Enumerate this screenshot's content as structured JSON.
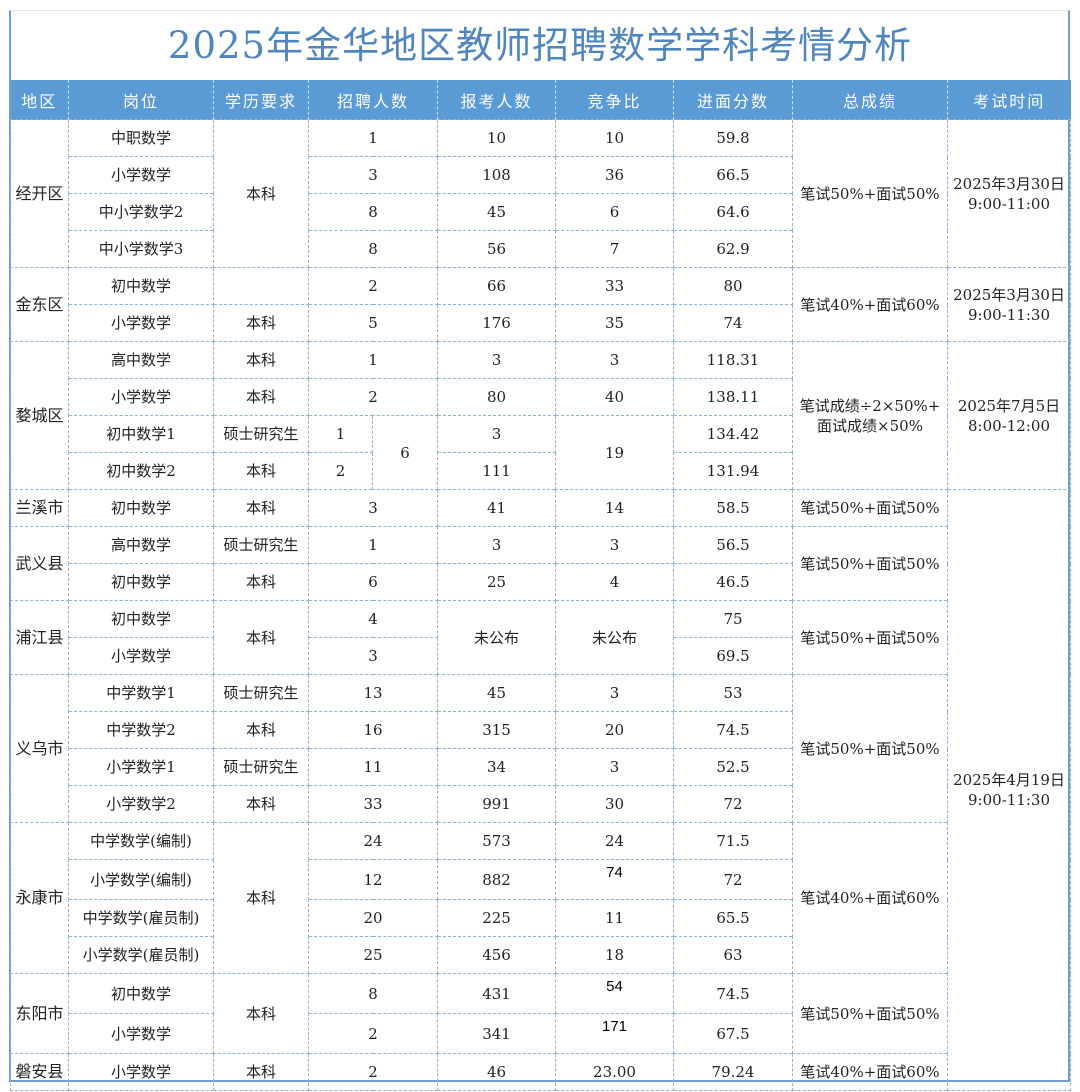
{
  "title": "2025年金华地区教师招聘数学学科考情分析",
  "headers": [
    "地区",
    "岗位",
    "学历要求",
    "招聘人数",
    "报考人数",
    "竞争比",
    "进面分数",
    "总成绩",
    "考试时间"
  ],
  "regions": [
    {
      "name": "经开区",
      "score_rule": "笔试50%+面试50%",
      "exam_time": "2025年3月30日\n9:00-11:00",
      "rows": [
        {
          "position": "中职数学",
          "education": "本科",
          "recruits": "1",
          "applicants": "10",
          "ratio": "10",
          "cutoff": "59.8"
        },
        {
          "position": "小学数学",
          "recruits": "3",
          "applicants": "108",
          "ratio": "36",
          "cutoff": "66.5"
        },
        {
          "position": "中小学数学2",
          "recruits": "8",
          "applicants": "45",
          "ratio": "6",
          "cutoff": "64.6"
        },
        {
          "position": "中小学数学3",
          "recruits": "8",
          "applicants": "56",
          "ratio": "7",
          "cutoff": "62.9"
        }
      ]
    },
    {
      "name": "金东区",
      "score_rule": "笔试40%+面试60%",
      "exam_time": "2025年3月30日\n9:00-11:30",
      "rows": [
        {
          "position": "初中数学",
          "education": "",
          "recruits": "2",
          "applicants": "66",
          "ratio": "33",
          "cutoff": "80"
        },
        {
          "position": "小学数学",
          "education": "本科",
          "recruits": "5",
          "applicants": "176",
          "ratio": "35",
          "cutoff": "74"
        }
      ]
    },
    {
      "name": "婺城区",
      "score_rule": "笔试成绩÷2×50%+\n面试成绩×50%",
      "exam_time": "2025年7月5日\n8:00-12:00",
      "rows": [
        {
          "position": "高中数学",
          "education": "本科",
          "recruits": "1",
          "applicants": "3",
          "ratio": "3",
          "cutoff": "118.31"
        },
        {
          "position": "小学数学",
          "education": "本科",
          "recruits": "2",
          "applicants": "80",
          "ratio": "40",
          "cutoff": "138.11"
        },
        {
          "position": "初中数学1",
          "education": "硕士研究生",
          "recruits": "1",
          "recruits_total": "6",
          "applicants": "3",
          "ratio": "19",
          "cutoff": "134.42"
        },
        {
          "position": "初中数学2",
          "education": "本科",
          "recruits": "2",
          "applicants": "111",
          "cutoff": "131.94"
        }
      ]
    },
    {
      "name": "兰溪市",
      "score_rule": "笔试50%+面试50%",
      "exam_time": "2025年4月19日\n9:00-11:30",
      "rows": [
        {
          "position": "初中数学",
          "education": "本科",
          "recruits": "3",
          "applicants": "41",
          "ratio": "14",
          "cutoff": "58.5"
        }
      ]
    },
    {
      "name": "武义县",
      "score_rule": "笔试50%+面试50%",
      "rows": [
        {
          "position": "高中数学",
          "education": "硕士研究生",
          "recruits": "1",
          "applicants": "3",
          "ratio": "3",
          "cutoff": "56.5"
        },
        {
          "position": "初中数学",
          "education": "本科",
          "recruits": "6",
          "applicants": "25",
          "ratio": "4",
          "cutoff": "46.5"
        }
      ]
    },
    {
      "name": "浦江县",
      "score_rule": "笔试50%+面试50%",
      "rows": [
        {
          "position": "初中数学",
          "education": "本科",
          "recruits": "4",
          "applicants": "未公布",
          "ratio": "未公布",
          "cutoff": "75"
        },
        {
          "position": "小学数学",
          "recruits": "3",
          "cutoff": "69.5"
        }
      ]
    },
    {
      "name": "义乌市",
      "score_rule": "笔试50%+面试50%",
      "rows": [
        {
          "position": "中学数学1",
          "education": "硕士研究生",
          "recruits": "13",
          "applicants": "45",
          "ratio": "3",
          "cutoff": "53"
        },
        {
          "position": "中学数学2",
          "education": "本科",
          "recruits": "16",
          "applicants": "315",
          "ratio": "20",
          "cutoff": "74.5"
        },
        {
          "position": "小学数学1",
          "education": "硕士研究生",
          "recruits": "11",
          "applicants": "34",
          "ratio": "3",
          "cutoff": "52.5"
        },
        {
          "position": "小学数学2",
          "education": "本科",
          "recruits": "33",
          "applicants": "991",
          "ratio": "30",
          "cutoff": "72"
        }
      ]
    },
    {
      "name": "永康市",
      "score_rule": "笔试40%+面试60%",
      "rows": [
        {
          "position": "中学数学(编制)",
          "education": "本科",
          "recruits": "24",
          "applicants": "573",
          "ratio": "24",
          "cutoff": "71.5"
        },
        {
          "position": "小学数学(编制)",
          "recruits": "12",
          "applicants": "882",
          "ratio": "74",
          "ratio_pasted": true,
          "cutoff": "72"
        },
        {
          "position": "中学数学(雇员制)",
          "recruits": "20",
          "applicants": "225",
          "ratio": "11",
          "cutoff": "65.5"
        },
        {
          "position": "小学数学(雇员制)",
          "recruits": "25",
          "applicants": "456",
          "ratio": "18",
          "cutoff": "63"
        }
      ]
    },
    {
      "name": "东阳市",
      "score_rule": "笔试50%+面试50%",
      "rows": [
        {
          "position": "初中数学",
          "education": "本科",
          "recruits": "8",
          "applicants": "431",
          "ratio": "54",
          "ratio_pasted": true,
          "cutoff": "74.5"
        },
        {
          "position": "小学数学",
          "recruits": "2",
          "applicants": "341",
          "ratio": "171",
          "ratio_pasted": true,
          "cutoff": "67.5"
        }
      ]
    },
    {
      "name": "磐安县",
      "score_rule": "笔试40%+面试60%",
      "rows": [
        {
          "position": "小学数学",
          "education": "本科",
          "recruits": "2",
          "applicants": "46",
          "ratio": "23.00",
          "cutoff": "79.24"
        }
      ]
    }
  ]
}
